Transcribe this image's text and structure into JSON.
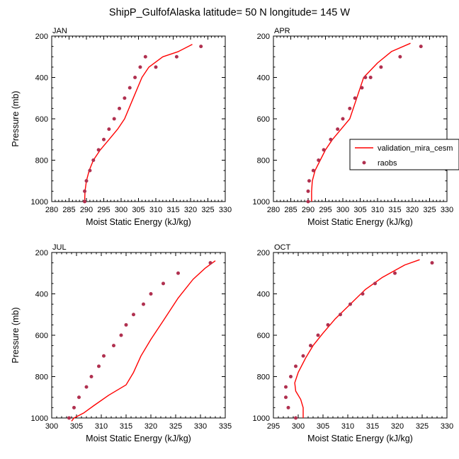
{
  "figure": {
    "title": "ShipP_GulfofAlaska  latitude= 50 N longitude= 145 W"
  },
  "colors": {
    "model_line": "#ff0000",
    "obs_marker": "#b0304f",
    "frame": "#000000"
  },
  "legend": {
    "placement": "right of APR panel",
    "entries": [
      {
        "label": "validation_mira_cesm",
        "style": "line"
      },
      {
        "label": "raobs",
        "style": "marker"
      }
    ]
  },
  "chart_data": [
    {
      "type": "line",
      "panel_label": "JAN",
      "xlabel": "Moist Static Energy (kJ/kg)",
      "ylabel": "Pressure (mb)",
      "xlim": [
        280,
        330
      ],
      "ylim": [
        1000,
        200
      ],
      "y_inverted": true,
      "xticks": [
        280,
        285,
        290,
        295,
        300,
        305,
        310,
        315,
        320,
        325,
        330
      ],
      "yticks": [
        200,
        400,
        600,
        800,
        1000
      ],
      "series": [
        {
          "name": "validation_mira_cesm",
          "style": "line",
          "x": [
            289.5,
            289.6,
            290.0,
            290.8,
            292.0,
            294.0,
            296.5,
            299.0,
            301.0,
            303.5,
            306.0,
            308.0,
            312.0,
            316.5,
            320.5
          ],
          "y": [
            1000,
            950,
            900,
            850,
            800,
            750,
            700,
            650,
            600,
            500,
            400,
            350,
            300,
            275,
            240
          ]
        },
        {
          "name": "raobs",
          "style": "marker",
          "x": [
            289.5,
            289.5,
            290.0,
            291.0,
            292.0,
            293.5,
            295.0,
            296.5,
            298.0,
            299.5,
            301.0,
            302.5,
            304.0,
            305.5,
            307.0,
            310.0,
            316.0,
            323.0
          ],
          "y": [
            1000,
            950,
            900,
            850,
            800,
            750,
            700,
            650,
            600,
            550,
            500,
            450,
            400,
            350,
            300,
            350,
            300,
            250
          ]
        }
      ]
    },
    {
      "type": "line",
      "panel_label": "APR",
      "xlabel": "Moist Static Energy (kJ/kg)",
      "ylabel": "",
      "xlim": [
        280,
        330
      ],
      "ylim": [
        1000,
        200
      ],
      "y_inverted": true,
      "xticks": [
        280,
        285,
        290,
        295,
        300,
        305,
        310,
        315,
        320,
        325,
        330
      ],
      "yticks": [
        200,
        400,
        600,
        800,
        1000
      ],
      "series": [
        {
          "name": "validation_mira_cesm",
          "style": "line",
          "x": [
            291.0,
            291.0,
            291.2,
            292.0,
            293.5,
            295.0,
            297.0,
            299.5,
            302.0,
            304.0,
            306.0,
            310.0,
            314.0,
            319.5
          ],
          "y": [
            1000,
            950,
            900,
            850,
            800,
            750,
            700,
            650,
            600,
            500,
            400,
            330,
            275,
            235
          ]
        },
        {
          "name": "raobs",
          "style": "marker",
          "x": [
            290.0,
            290.0,
            290.3,
            291.5,
            293.0,
            294.5,
            296.5,
            298.5,
            300.0,
            302.0,
            303.5,
            305.5,
            306.5,
            308.0,
            311.0,
            316.5,
            322.5
          ],
          "y": [
            1000,
            950,
            900,
            850,
            800,
            750,
            700,
            650,
            600,
            550,
            500,
            450,
            400,
            400,
            350,
            300,
            250
          ]
        }
      ]
    },
    {
      "type": "line",
      "panel_label": "JUL",
      "xlabel": "Moist Static Energy (kJ/kg)",
      "ylabel": "Pressure (mb)",
      "xlim": [
        300,
        335
      ],
      "ylim": [
        1000,
        200
      ],
      "y_inverted": true,
      "xticks": [
        300,
        305,
        310,
        315,
        320,
        325,
        330,
        335
      ],
      "yticks": [
        200,
        400,
        600,
        800,
        1000
      ],
      "series": [
        {
          "name": "validation_mira_cesm",
          "style": "line",
          "x": [
            304.0,
            304.5,
            306.5,
            308.5,
            311.5,
            315.0,
            316.5,
            318.0,
            320.0,
            322.5,
            325.5,
            328.5,
            331.0,
            333.0
          ],
          "y": [
            1015,
            1000,
            975,
            940,
            890,
            840,
            780,
            700,
            620,
            530,
            420,
            330,
            275,
            240
          ]
        },
        {
          "name": "raobs",
          "style": "marker",
          "x": [
            303.5,
            304.5,
            305.5,
            307.0,
            308.0,
            309.5,
            310.5,
            312.5,
            314.0,
            315.0,
            316.5,
            318.5,
            320.0,
            322.5,
            325.5,
            332.0
          ],
          "y": [
            1000,
            950,
            900,
            850,
            800,
            750,
            700,
            650,
            600,
            550,
            500,
            450,
            400,
            350,
            300,
            250
          ]
        }
      ]
    },
    {
      "type": "line",
      "panel_label": "OCT",
      "xlabel": "Moist Static Energy (kJ/kg)",
      "ylabel": "",
      "xlim": [
        295,
        330
      ],
      "ylim": [
        1000,
        200
      ],
      "y_inverted": true,
      "xticks": [
        295,
        300,
        305,
        310,
        315,
        320,
        325,
        330
      ],
      "yticks": [
        200,
        400,
        600,
        800,
        1000
      ],
      "series": [
        {
          "name": "validation_mira_cesm",
          "style": "line",
          "x": [
            301.0,
            301.0,
            300.5,
            299.5,
            299.3,
            300.0,
            301.5,
            303.0,
            305.0,
            307.5,
            310.5,
            313.5,
            317.0,
            321.5,
            324.5
          ],
          "y": [
            1000,
            950,
            910,
            870,
            830,
            780,
            710,
            650,
            590,
            520,
            450,
            380,
            320,
            260,
            235
          ]
        },
        {
          "name": "raobs",
          "style": "marker",
          "x": [
            299.5,
            298.0,
            297.5,
            297.5,
            298.5,
            299.5,
            301.0,
            302.5,
            304.0,
            306.0,
            308.5,
            310.5,
            313.0,
            315.5,
            319.5,
            327.0
          ],
          "y": [
            1000,
            950,
            900,
            850,
            800,
            750,
            700,
            650,
            600,
            550,
            500,
            450,
            400,
            350,
            300,
            250
          ]
        }
      ]
    }
  ]
}
